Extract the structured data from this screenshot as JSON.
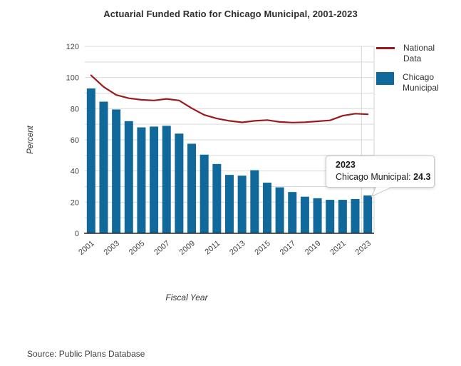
{
  "chart_data": {
    "type": "bar",
    "title": "Actuarial Funded Ratio for Chicago Municipal, 2001-2023",
    "xlabel": "Fiscal Year",
    "ylabel": "Percent",
    "ylim": [
      0,
      120
    ],
    "y_major_ticks": [
      0,
      20,
      40,
      60,
      80,
      100,
      120
    ],
    "y_minor_step": 10,
    "grid": true,
    "legend_position": "right",
    "categories": [
      "2001",
      "2002",
      "2003",
      "2004",
      "2005",
      "2006",
      "2007",
      "2008",
      "2009",
      "2010",
      "2011",
      "2012",
      "2013",
      "2014",
      "2015",
      "2016",
      "2017",
      "2018",
      "2019",
      "2020",
      "2021",
      "2022",
      "2023"
    ],
    "x_tick_labels": [
      "2001",
      "2003",
      "2005",
      "2007",
      "2009",
      "2011",
      "2013",
      "2015",
      "2017",
      "2019",
      "2021",
      "2023"
    ],
    "series": [
      {
        "name": "National Data",
        "type": "line",
        "color": "#9a1b1e",
        "values": [
          101.4,
          94.0,
          88.8,
          86.7,
          85.7,
          85.3,
          86.3,
          85.3,
          80.3,
          76.0,
          73.7,
          72.2,
          71.2,
          72.2,
          72.7,
          71.5,
          71.1,
          71.3,
          71.9,
          72.5,
          75.5,
          76.8,
          76.4
        ]
      },
      {
        "name": "Chicago Municipal",
        "type": "bar",
        "color": "#11689b",
        "values": [
          93.0,
          84.5,
          79.5,
          72.0,
          68.0,
          68.5,
          69.0,
          64.0,
          57.5,
          50.5,
          44.5,
          37.5,
          37.0,
          40.5,
          32.5,
          29.5,
          26.5,
          23.5,
          22.5,
          21.5,
          21.5,
          22.0,
          24.3
        ]
      }
    ],
    "colors": {
      "gridline": "#d9d9d9",
      "axis": "#262626",
      "tick_text": "#424242",
      "crosshair_band": "#d6d6d6"
    }
  },
  "tooltip": {
    "year": "2023",
    "series": "Chicago Municipal",
    "separator": ": ",
    "value": "24.3"
  },
  "source": "Source: Public Plans Database"
}
